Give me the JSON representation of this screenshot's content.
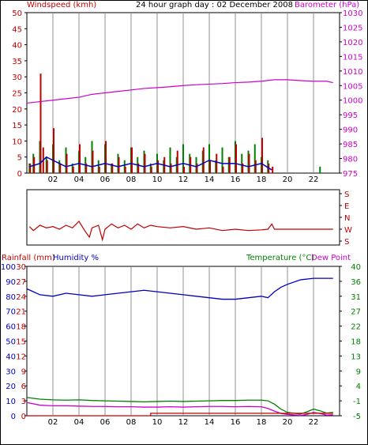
{
  "title": "24 hour graph day : 02 December 2008",
  "colors": {
    "wind": "#c00000",
    "wind_avg": "#0000c0",
    "gust": "#008000",
    "baro": "#cc00cc",
    "dir": "#c00000",
    "rain": "#c00000",
    "humidity": "#0000c0",
    "temp": "#008000",
    "dew": "#cc00cc",
    "grid": "#c8c8c8"
  },
  "x_ticks": [
    "02",
    "04",
    "06",
    "08",
    "10",
    "12",
    "14",
    "16",
    "18",
    "20",
    "22"
  ],
  "panel_top": {
    "left_label": "Windspeed (kmh)",
    "right_label": "Barometer (hPa)",
    "left_ticks": [
      0,
      5,
      10,
      15,
      20,
      25,
      30,
      35,
      40,
      45,
      50
    ],
    "right_ticks": [
      975,
      980,
      985,
      990,
      995,
      1000,
      1005,
      1010,
      1015,
      1020,
      1025,
      1030
    ]
  },
  "panel_mid": {
    "right_ticks": [
      "S",
      "E",
      "N",
      "W",
      "S"
    ]
  },
  "panel_bottom": {
    "rain_label": "Rainfall (mm)",
    "hum_label": "Humidity %",
    "temp_label": "Temperature (°C)",
    "dew_label": "Dew Point",
    "hum_ticks": [
      0,
      10,
      20,
      30,
      40,
      50,
      60,
      70,
      80,
      90,
      100
    ],
    "rain_ticks": [
      0,
      3,
      6,
      9,
      12,
      15,
      18,
      21,
      24,
      27,
      30
    ],
    "temp_ticks": [
      -5,
      -1,
      4,
      9,
      13,
      18,
      22,
      27,
      31,
      36,
      40
    ]
  },
  "chart_data": [
    {
      "type": "line",
      "name": "wind_barometer",
      "x_unit": "hour",
      "x_range": [
        0,
        24
      ],
      "y_left_range": [
        0,
        50
      ],
      "y_right_range": [
        975,
        1030
      ],
      "series": [
        {
          "name": "Windspeed (kmh)",
          "axis": "left",
          "x": [
            0.2,
            0.5,
            1,
            1.2,
            1.5,
            2,
            2.5,
            3,
            3.5,
            4,
            4.5,
            5,
            5.5,
            6,
            6.5,
            7,
            7.5,
            8,
            8.5,
            9,
            9.5,
            10,
            10.5,
            11,
            11.5,
            12,
            12.5,
            13,
            13.5,
            14,
            14.5,
            15,
            15.5,
            16,
            16.5,
            17,
            17.5,
            18,
            18.5,
            18.8
          ],
          "y": [
            3,
            5,
            31,
            8,
            4,
            14,
            3,
            6,
            2,
            9,
            3,
            7,
            2,
            10,
            3,
            5,
            2,
            8,
            3,
            6,
            2,
            4,
            5,
            3,
            7,
            2,
            5,
            3,
            8,
            4,
            6,
            2,
            5,
            9,
            3,
            6,
            4,
            11,
            3,
            2
          ]
        },
        {
          "name": "Gust",
          "axis": "left",
          "x": [
            0.2,
            0.5,
            1,
            1.5,
            2,
            2.5,
            3,
            3.5,
            4,
            4.5,
            5,
            5.5,
            6,
            6.5,
            7,
            7.5,
            8,
            8.5,
            9,
            9.5,
            10,
            10.5,
            11,
            11.5,
            12,
            12.5,
            13,
            13.5,
            14,
            14.5,
            15,
            15.5,
            16,
            16.5,
            17,
            17.5,
            18,
            18.5,
            19,
            21.5,
            22.5,
            23.5
          ],
          "y": [
            3,
            6,
            10,
            5,
            9,
            4,
            8,
            3,
            7,
            5,
            10,
            4,
            9,
            3,
            6,
            4,
            8,
            5,
            7,
            3,
            6,
            4,
            8,
            5,
            9,
            6,
            5,
            7,
            9,
            4,
            8,
            5,
            10,
            6,
            7,
            9,
            5,
            4,
            0,
            0,
            2,
            0
          ]
        },
        {
          "name": "Average",
          "axis": "left",
          "x": [
            0.2,
            1,
            1.5,
            2,
            2.5,
            3,
            4,
            5,
            6,
            7,
            8,
            9,
            10,
            11,
            12,
            13,
            14,
            15,
            16,
            17,
            18,
            18.8
          ],
          "y": [
            2,
            3,
            5,
            4,
            3,
            2,
            3,
            2,
            3,
            2,
            3,
            2,
            3,
            2,
            3,
            2,
            4,
            3,
            3,
            2,
            3,
            1
          ]
        },
        {
          "name": "Barometer (hPa)",
          "axis": "right",
          "x": [
            0,
            1,
            2,
            3,
            4,
            5,
            6,
            7,
            8,
            9,
            10,
            11,
            12,
            13,
            14,
            15,
            16,
            17,
            18,
            19,
            20,
            21,
            22,
            23,
            23.5
          ],
          "y": [
            999,
            999.5,
            1000,
            1000.5,
            1001,
            1002,
            1002.5,
            1003,
            1003.5,
            1004,
            1004.3,
            1004.6,
            1005,
            1005.3,
            1005.5,
            1005.7,
            1006,
            1006.2,
            1006.5,
            1007,
            1007,
            1006.7,
            1006.5,
            1006.5,
            1006
          ]
        }
      ]
    },
    {
      "type": "line",
      "name": "wind_direction",
      "x_unit": "hour",
      "x_range": [
        0,
        24
      ],
      "y_categories": [
        "S",
        "E",
        "N",
        "W",
        "S"
      ],
      "y_range": [
        0,
        360
      ],
      "series": [
        {
          "name": "Direction",
          "x": [
            0.2,
            0.5,
            1,
            1.5,
            2,
            2.5,
            3,
            3.5,
            4,
            4.5,
            4.8,
            5,
            5.5,
            5.8,
            6,
            6.5,
            7,
            7.5,
            8,
            8.5,
            9,
            9.5,
            10,
            11,
            12,
            13,
            14,
            15,
            16,
            17,
            18,
            18.5,
            18.8,
            19,
            20,
            22,
            23.5
          ],
          "y": [
            250,
            280,
            240,
            260,
            250,
            270,
            240,
            260,
            210,
            290,
            330,
            260,
            240,
            350,
            270,
            230,
            260,
            240,
            270,
            230,
            260,
            240,
            250,
            260,
            250,
            270,
            260,
            280,
            270,
            280,
            275,
            270,
            230,
            270,
            270,
            270,
            270
          ]
        }
      ]
    },
    {
      "type": "line",
      "name": "rain_humidity_temp",
      "x_unit": "hour",
      "x_range": [
        0,
        24
      ],
      "y_hum_range": [
        0,
        100
      ],
      "y_temp_range": [
        -5,
        40
      ],
      "series": [
        {
          "name": "Humidity %",
          "axis": "humidity",
          "x": [
            0,
            0.5,
            1,
            2,
            3,
            4,
            5,
            6,
            7,
            8,
            9,
            10,
            11,
            12,
            13,
            14,
            15,
            16,
            17,
            18,
            18.5,
            19,
            19.5,
            20,
            21,
            22,
            23,
            23.5
          ],
          "y": [
            85,
            83,
            81,
            80,
            82,
            81,
            80,
            81,
            82,
            83,
            84,
            83,
            82,
            81,
            80,
            79,
            78,
            78,
            79,
            80,
            79,
            83,
            86,
            88,
            91,
            92,
            92,
            92
          ]
        },
        {
          "name": "Temperature (°C)",
          "axis": "temp",
          "x": [
            0,
            1,
            2,
            3,
            4,
            5,
            6,
            7,
            8,
            9,
            10,
            11,
            12,
            13,
            14,
            15,
            16,
            17,
            18,
            18.5,
            19,
            19.5,
            20,
            21,
            21.5,
            22,
            22.5,
            23,
            23.5
          ],
          "y": [
            0.5,
            0,
            -0.2,
            -0.3,
            -0.2,
            -0.4,
            -0.5,
            -0.6,
            -0.7,
            -0.8,
            -0.7,
            -0.6,
            -0.7,
            -0.6,
            -0.5,
            -0.4,
            -0.4,
            -0.3,
            -0.3,
            -0.5,
            -1.5,
            -3,
            -4,
            -4.5,
            -3.8,
            -3,
            -3.5,
            -4.2,
            -4
          ]
        },
        {
          "name": "Dew Point",
          "axis": "temp",
          "x": [
            0,
            1,
            2,
            3,
            4,
            5,
            6,
            7,
            8,
            9,
            10,
            11,
            12,
            13,
            14,
            15,
            16,
            17,
            18,
            18.5,
            19,
            19.5,
            20,
            21,
            21.5,
            22,
            22.5,
            23,
            23.5
          ],
          "y": [
            -1,
            -1.8,
            -2,
            -2,
            -2.1,
            -2.2,
            -2.2,
            -2.3,
            -2.3,
            -2.4,
            -2.4,
            -2.3,
            -2.4,
            -2.3,
            -2.2,
            -2.2,
            -2.3,
            -2.2,
            -2.3,
            -2.8,
            -3.6,
            -4.3,
            -4.6,
            -4.9,
            -4.6,
            -4,
            -4.3,
            -4.8,
            -4.7
          ]
        },
        {
          "name": "Rainfall (mm)",
          "axis": "rain",
          "x": [
            0,
            9.5,
            9.5,
            23.5
          ],
          "y": [
            0,
            0,
            0.5,
            0.5
          ]
        }
      ]
    }
  ]
}
